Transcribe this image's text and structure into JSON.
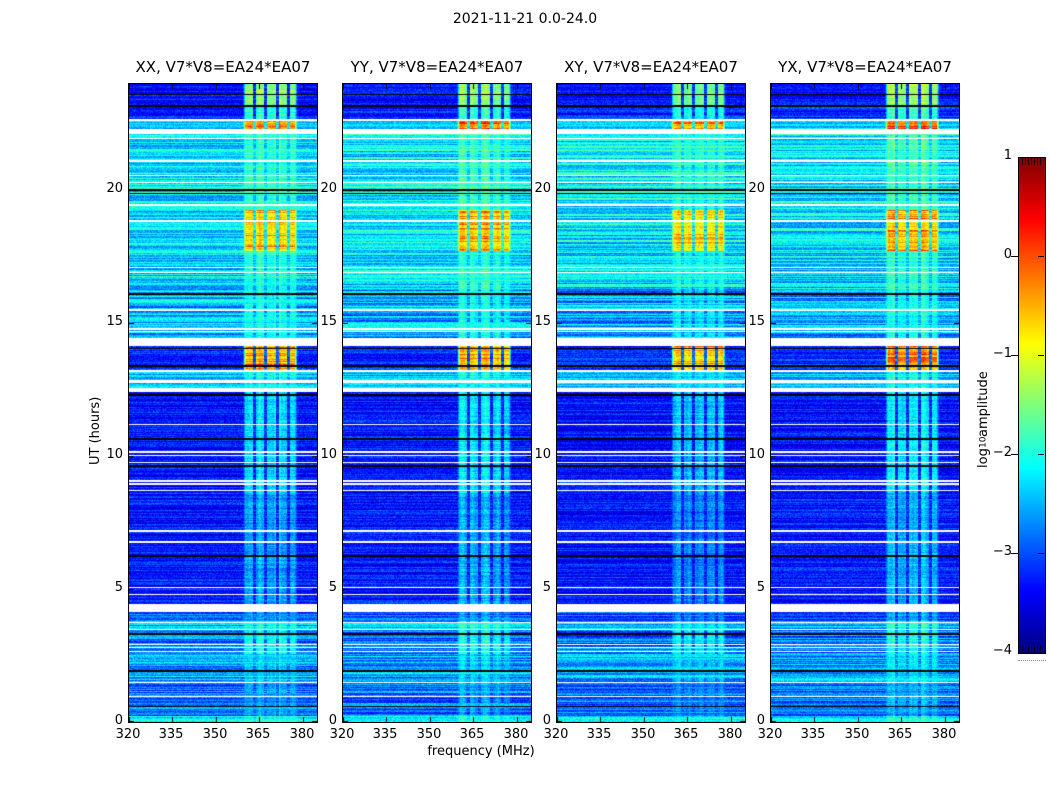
{
  "figure": {
    "title": "2021-11-21 0.0-24.0"
  },
  "colorbar": {
    "label_prefix": "log",
    "label_sub": "10",
    "label_suffix": " amplitude",
    "ticks": [
      {
        "label": "1",
        "value": 1
      },
      {
        "label": "0",
        "value": 0
      },
      {
        "label": "−1",
        "value": -1
      },
      {
        "label": "−2",
        "value": -2
      },
      {
        "label": "−3",
        "value": -3
      },
      {
        "label": "−4",
        "value": -4
      }
    ],
    "vmin": -4,
    "vmax": 1,
    "colormap": "jet"
  },
  "chart_data": {
    "type": "heatmap",
    "title": "2021-11-21 0.0-24.0",
    "panels": [
      {
        "title": "XX, V7*V8=EA24*EA07",
        "seed": 11,
        "band_offset": 0.0
      },
      {
        "title": "YY, V7*V8=EA24*EA07",
        "seed": 22,
        "band_offset": -0.05
      },
      {
        "title": "XY, V7*V8=EA24*EA07",
        "seed": 33,
        "band_offset": -0.18
      },
      {
        "title": "YX, V7*V8=EA24*EA07",
        "seed": 44,
        "band_offset": 0.03
      }
    ],
    "x": {
      "label": "frequency (MHz)",
      "range": [
        320,
        385
      ],
      "ticks": [
        320,
        335,
        350,
        365,
        380
      ]
    },
    "y": {
      "label": "UT (hours)",
      "range": [
        0,
        24
      ],
      "ticks": [
        0,
        5,
        10,
        15,
        20
      ]
    },
    "value": {
      "label": "log10 amplitude",
      "range": [
        -4,
        1
      ],
      "colormap": "jet"
    },
    "rfi_band": {
      "range_mhz": [
        359.5,
        378.2
      ],
      "gap_centers_mhz": [
        363.3,
        367.3,
        371.3,
        375.2
      ],
      "gap_width_mhz": 0.95
    },
    "time_segments": [
      {
        "from": 0.0,
        "to": 0.22,
        "base": -2.15,
        "stripe": 0.25,
        "band": -2.05,
        "flare": false
      },
      {
        "from": 0.22,
        "to": 1.45,
        "base": -2.85,
        "stripe": 0.45,
        "band": -2.6,
        "flare": false
      },
      {
        "from": 1.45,
        "to": 2.55,
        "base": -2.55,
        "stripe": 0.5,
        "band": -2.35,
        "flare": false
      },
      {
        "from": 2.55,
        "to": 3.45,
        "base": -2.8,
        "stripe": 0.45,
        "band": -2.05,
        "flare": false
      },
      {
        "from": 3.45,
        "to": 3.8,
        "base": -2.5,
        "stripe": 0.45,
        "band": -1.95,
        "flare": false
      },
      {
        "from": 3.8,
        "to": 4.15,
        "base": -2.95,
        "stripe": 0.35,
        "band": -2.6,
        "flare": false
      },
      {
        "from": 4.45,
        "to": 8.6,
        "base": -3.25,
        "stripe": 0.3,
        "band": -2.55,
        "flare": false
      },
      {
        "from": 8.6,
        "to": 12.4,
        "base": -3.3,
        "stripe": 0.3,
        "band": -2.25,
        "flare": false
      },
      {
        "from": 12.55,
        "to": 12.75,
        "base": -2.35,
        "stripe": 0.3,
        "band": -2.15,
        "flare": false
      },
      {
        "from": 12.88,
        "to": 13.15,
        "base": -2.45,
        "stripe": 0.35,
        "band": -2.05,
        "flare": false
      },
      {
        "from": 13.25,
        "to": 14.15,
        "base": -3.15,
        "stripe": 0.3,
        "band": -0.6,
        "flare": true
      },
      {
        "from": 14.45,
        "to": 16.3,
        "base": -2.5,
        "stripe": 0.55,
        "band": -2.1,
        "flare": false
      },
      {
        "from": 16.3,
        "to": 17.7,
        "base": -2.3,
        "stripe": 0.5,
        "band": -1.95,
        "flare": false
      },
      {
        "from": 17.7,
        "to": 19.25,
        "base": -2.25,
        "stripe": 0.5,
        "band": -0.75,
        "flare": true
      },
      {
        "from": 19.25,
        "to": 22.13,
        "base": -2.2,
        "stripe": 0.5,
        "band": -1.85,
        "flare": false
      },
      {
        "from": 22.32,
        "to": 22.62,
        "base": -2.4,
        "stripe": 0.3,
        "band": -0.4,
        "flare": true
      },
      {
        "from": 22.68,
        "to": 23.14,
        "base": -3.2,
        "stripe": 0.3,
        "band": -1.9,
        "flare": false
      },
      {
        "from": 23.14,
        "to": 24.0,
        "base": -3.3,
        "stripe": 0.25,
        "band": -1.4,
        "flare": false
      }
    ],
    "white_gaps": [
      [
        4.15,
        4.45
      ],
      [
        12.4,
        12.55
      ],
      [
        12.75,
        12.88
      ],
      [
        13.15,
        13.25
      ],
      [
        14.15,
        14.45
      ],
      [
        22.13,
        22.32
      ],
      [
        22.62,
        22.68
      ]
    ],
    "white_lines": [
      0.97,
      1.49,
      2.66,
      2.81,
      2.92,
      3.48,
      3.74,
      4.8,
      5.06,
      6.77,
      7.19,
      8.7,
      8.95,
      9.06,
      9.76,
      10.02,
      10.16,
      11.2,
      14.7,
      14.79,
      15.5,
      16.9,
      17.1,
      18.85,
      19.45,
      20.3,
      20.55,
      21.1,
      21.95
    ],
    "black_lines": [
      0.59,
      1.91,
      3.3,
      6.25,
      9.62,
      10.65,
      12.3,
      13.4,
      14.05,
      16.1,
      19.88,
      20.02,
      23.17,
      23.6
    ]
  }
}
